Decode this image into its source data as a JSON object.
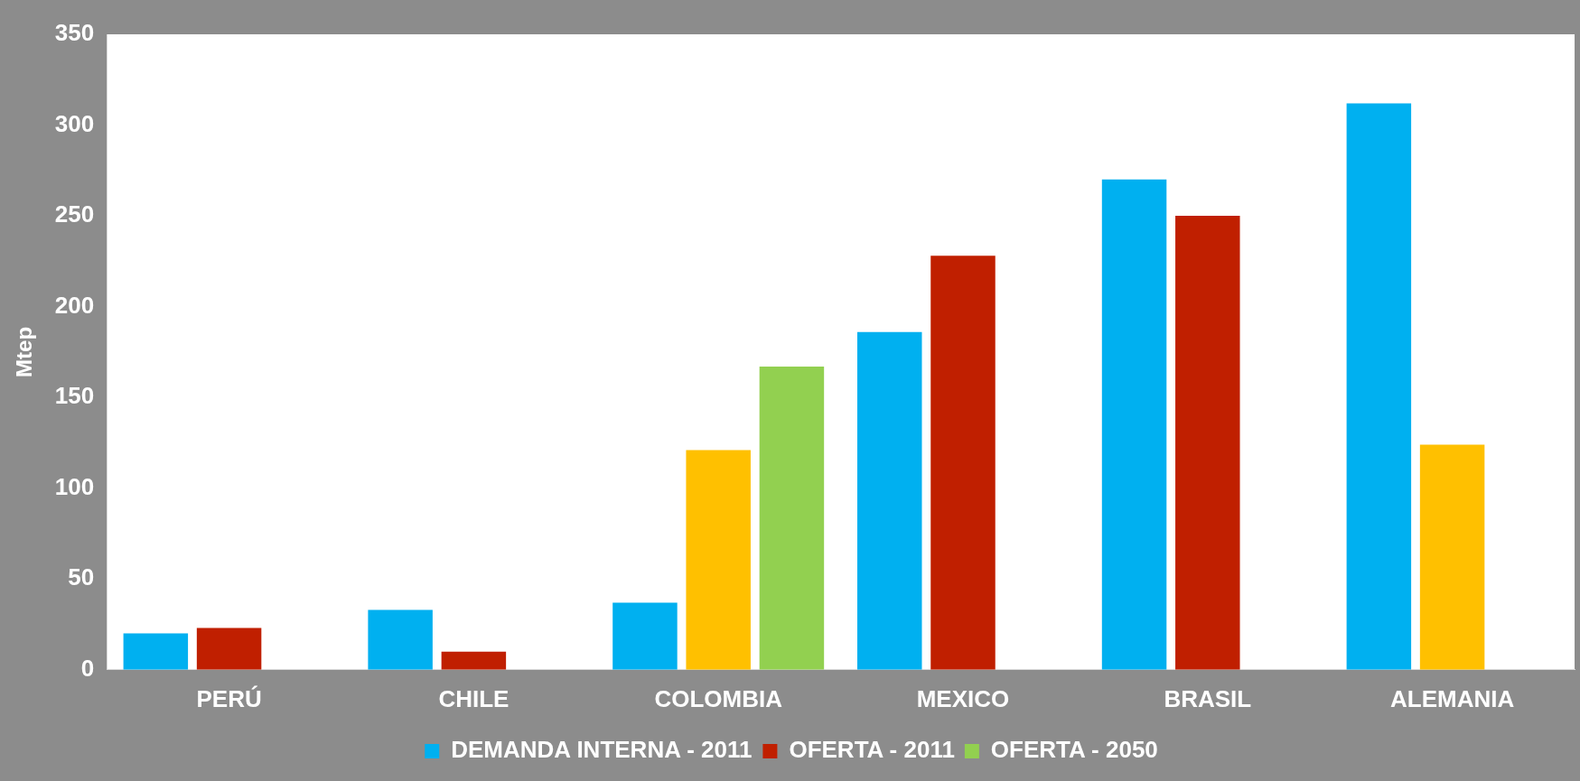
{
  "chart_data": {
    "type": "bar",
    "ylabel": "Mtep",
    "categories": [
      "PERÚ",
      "CHILE",
      "COLOMBIA",
      "MEXICO",
      "BRASIL",
      "ALEMANIA"
    ],
    "series": [
      {
        "name": "DEMANDA INTERNA - 2011",
        "color": "#00b0f0",
        "values": [
          20,
          33,
          37,
          186,
          270,
          312
        ]
      },
      {
        "name": "OFERTA - 2011",
        "color": "#c01f00",
        "colors": [
          "#c01f00",
          "#c01f00",
          "#ffc000",
          "#c01f00",
          "#c01f00",
          "#ffc000"
        ],
        "values": [
          23,
          10,
          121,
          228,
          250,
          124
        ]
      },
      {
        "name": "OFERTA - 2050",
        "color": "#92d050",
        "values": [
          null,
          null,
          167,
          null,
          null,
          null
        ]
      }
    ],
    "ylim": [
      0,
      350
    ],
    "yticks": [
      0,
      50,
      100,
      150,
      200,
      250,
      300,
      350
    ],
    "grid": false,
    "legend": "bottom"
  }
}
